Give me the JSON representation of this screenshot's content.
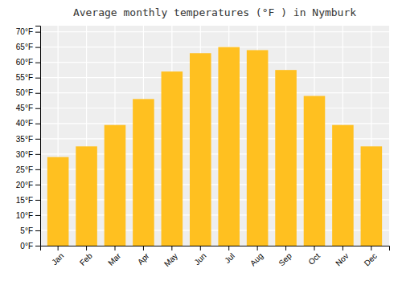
{
  "chart_data": {
    "type": "bar",
    "title": "Average monthly temperatures (°F ) in Nymburk",
    "categories": [
      "Jan",
      "Feb",
      "Mar",
      "Apr",
      "May",
      "Jun",
      "Jul",
      "Aug",
      "Sep",
      "Oct",
      "Nov",
      "Dec"
    ],
    "values": [
      29,
      32.5,
      39.5,
      48,
      57,
      63,
      65,
      64,
      57.5,
      49,
      39.5,
      32.5
    ],
    "color": "#FFC020",
    "ylim": [
      0,
      72
    ],
    "yticks": [
      {
        "value": 0,
        "label": "0°F"
      },
      {
        "value": 5,
        "label": "5°F"
      },
      {
        "value": 10,
        "label": "10°F"
      },
      {
        "value": 15,
        "label": "15°F"
      },
      {
        "value": 20,
        "label": "20°F"
      },
      {
        "value": 25,
        "label": "25°F"
      },
      {
        "value": 30,
        "label": "30°F"
      },
      {
        "value": 35,
        "label": "35°F"
      },
      {
        "value": 40,
        "label": "40°F"
      },
      {
        "value": 45,
        "label": "45°F"
      },
      {
        "value": 50,
        "label": "50°F"
      },
      {
        "value": 55,
        "label": "55°F"
      },
      {
        "value": 60,
        "label": "60°F"
      },
      {
        "value": 65,
        "label": "65°F"
      },
      {
        "value": 70,
        "label": "70°F"
      }
    ],
    "grid": true
  }
}
